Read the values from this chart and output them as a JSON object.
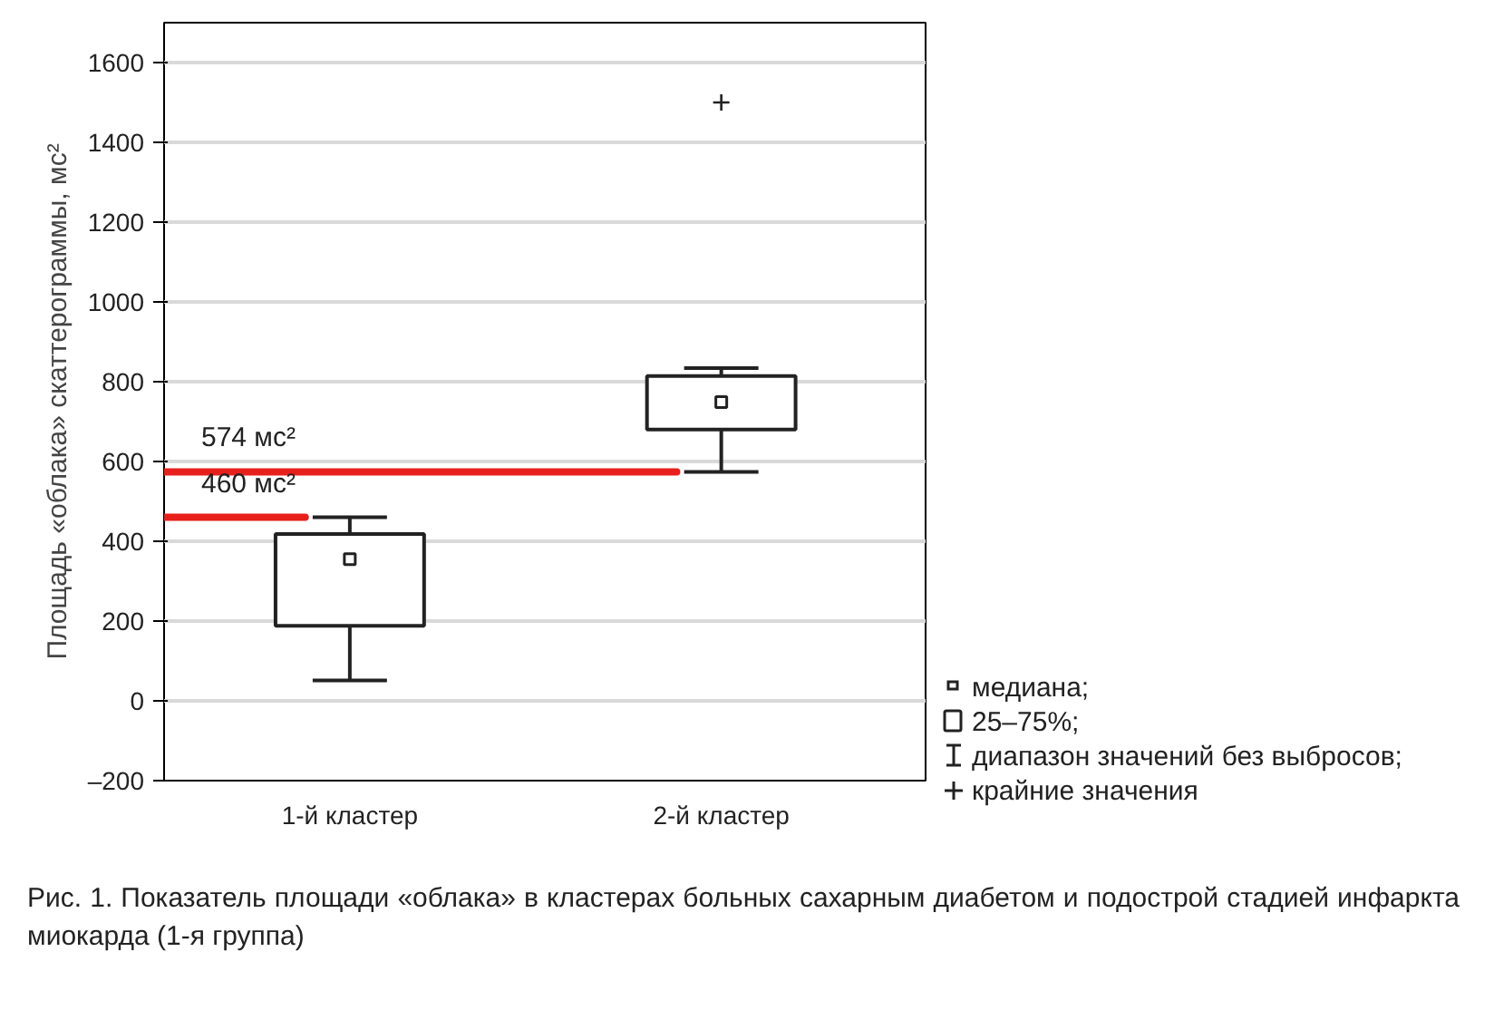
{
  "chart_data": {
    "type": "box",
    "title": "Рис. 1. Показатель площади «облака» в кластерах больных сахарным диабетом и подострой стадией инфаркта миокарда (1-я группа)",
    "ylabel": "Площадь «облака» скаттерограммы, мс²",
    "categories": [
      "1-й кластер",
      "2-й кластер"
    ],
    "boxes": [
      {
        "low": 51,
        "q1": 188,
        "median": 355,
        "q3": 418,
        "high": 460
      },
      {
        "low": 574,
        "q1": 680,
        "median": 749,
        "q3": 814,
        "high": 834,
        "outliers": [
          1500
        ]
      }
    ],
    "ylim": [
      -200,
      1700
    ],
    "yticks": [
      {
        "value": -200,
        "label": "–200"
      },
      0,
      200,
      400,
      600,
      800,
      1000,
      1200,
      1400,
      1600
    ],
    "grid": "y",
    "ref_lines": [
      {
        "axis": "y",
        "value": 574,
        "label": "574 мс²",
        "color": "#e8201c"
      },
      {
        "axis": "y",
        "value": 460,
        "label": "460 мс²",
        "color": "#e8201c"
      }
    ],
    "annotations": [
      "медиана;",
      "25–75%;",
      "диапазон значений без выбросов;",
      "крайние значения"
    ]
  }
}
